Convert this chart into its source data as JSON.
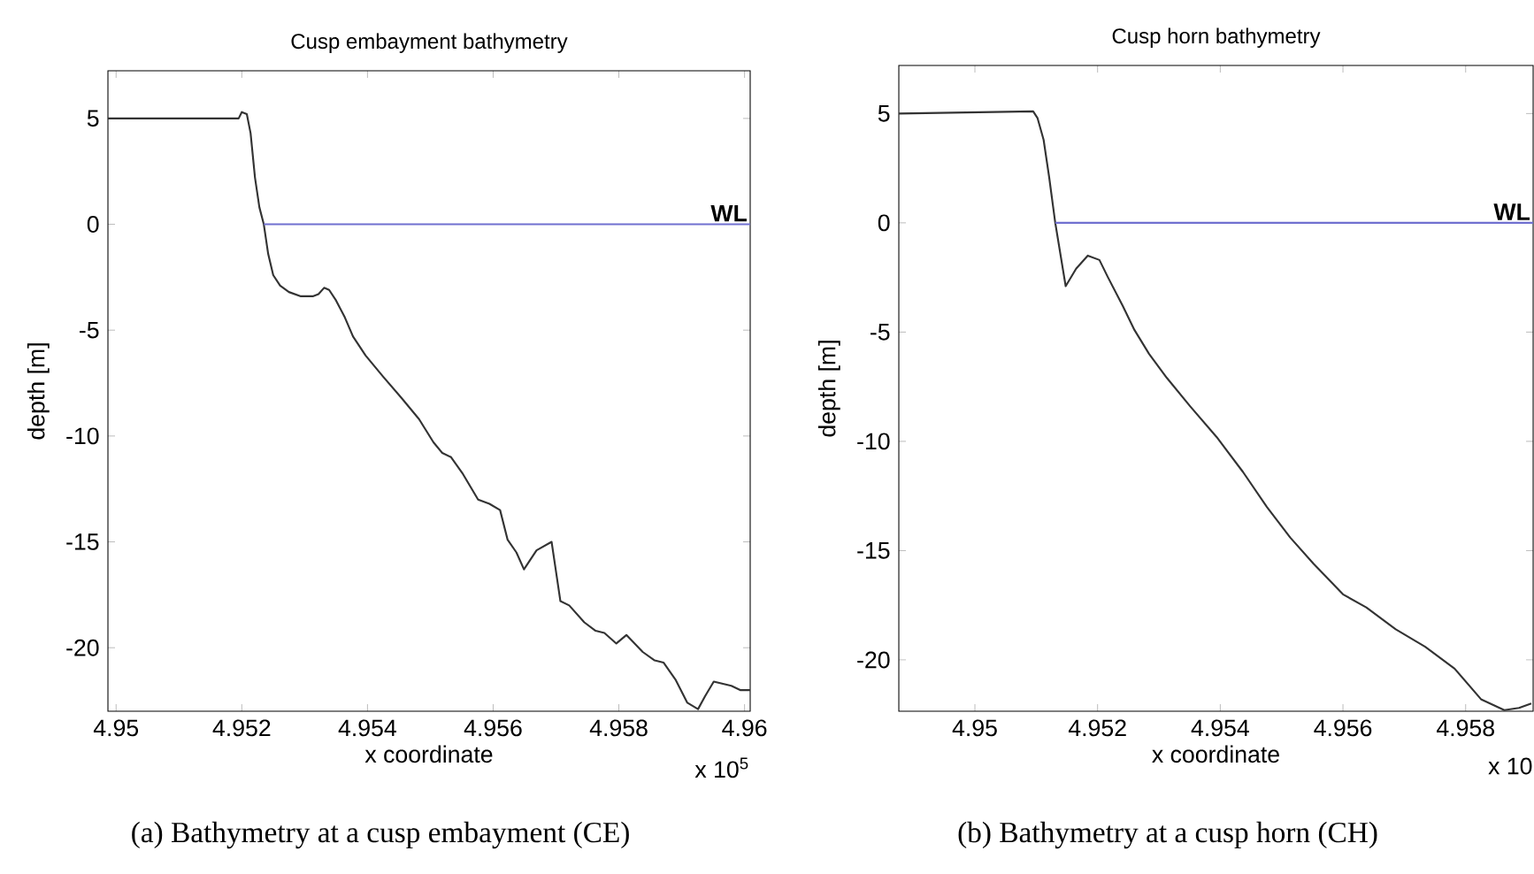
{
  "chart_data": [
    {
      "type": "line",
      "title": "Cusp embayment bathymetry",
      "xlabel": "x coordinate",
      "ylabel": "depth [m]",
      "xlim": [
        4.94987,
        4.96009
      ],
      "ylim": [
        -23,
        7.25
      ],
      "xticks": [
        4.95,
        4.952,
        4.954,
        4.956,
        4.958,
        4.96
      ],
      "yticks": [
        -20,
        -15,
        -10,
        -5,
        0,
        5
      ],
      "grid": false,
      "series": [
        {
          "color": "#333333",
          "x": [
            4.94987,
            4.95195,
            4.952,
            4.95208,
            4.95214,
            4.95221,
            4.95228,
            4.95235,
            4.95242,
            4.9525,
            4.95261,
            4.95275,
            4.95294,
            4.95313,
            4.95322,
            4.95331,
            4.95339,
            4.9535,
            4.95364,
            4.95377,
            4.95397,
            4.95425,
            4.95454,
            4.95482,
            4.95505,
            4.95519,
            4.95533,
            4.95552,
            4.95576,
            4.95594,
            4.95611,
            4.95623,
            4.95637,
            4.95649,
            4.95669,
            4.95693,
            4.95707,
            4.95721,
            4.95745,
            4.95763,
            4.95777,
            4.95796,
            4.95812,
            4.95838,
            4.95857,
            4.95871,
            4.9589,
            4.95909,
            4.95926,
            4.95937,
            4.95951,
            4.95979,
            4.95993,
            4.96009
          ],
          "values": [
            5,
            5,
            5.3,
            5.2,
            4.3,
            2.2,
            0.8,
            0,
            -1.4,
            -2.4,
            -2.9,
            -3.2,
            -3.4,
            -3.4,
            -3.3,
            -3.0,
            -3.1,
            -3.6,
            -4.4,
            -5.3,
            -6.2,
            -7.2,
            -8.2,
            -9.2,
            -10.3,
            -10.8,
            -11,
            -11.8,
            -13.0,
            -13.2,
            -13.5,
            -14.9,
            -15.5,
            -16.3,
            -15.4,
            -15.0,
            -17.8,
            -18.0,
            -18.8,
            -19.2,
            -19.3,
            -19.8,
            -19.4,
            -20.2,
            -20.6,
            -20.7,
            -21.5,
            -22.6,
            -22.9,
            -22.3,
            -21.6,
            -21.8,
            -22.0,
            -22.0
          ]
        },
        {
          "name": "WL",
          "color": "#7070d0",
          "x": [
            4.95235,
            4.96009
          ],
          "values": [
            0,
            0
          ]
        }
      ],
      "annotations": [
        "x 10$^{5}$",
        "(a) Bathymetry at a cusp embayment (CE)"
      ]
    },
    {
      "type": "line",
      "title": "Cusp horn bathymetry",
      "xlabel": "x coordinate",
      "ylabel": "depth [m]",
      "xlim": [
        4.94876,
        4.9591
      ],
      "ylim": [
        -22.35,
        7.2
      ],
      "xticks": [
        4.95,
        4.952,
        4.954,
        4.956,
        4.958
      ],
      "yticks": [
        -20,
        -15,
        -10,
        -5,
        0,
        5
      ],
      "grid": false,
      "series": [
        {
          "color": "#333333",
          "x": [
            4.94876,
            4.95095,
            4.95102,
            4.95112,
            4.95121,
            4.95131,
            4.95148,
            4.95165,
            4.95184,
            4.95203,
            4.95217,
            4.95241,
            4.9526,
            4.95284,
            4.95313,
            4.95351,
            4.95394,
            4.95437,
            4.95476,
            4.95514,
            4.95552,
            4.956,
            4.95638,
            4.95686,
            4.95734,
            4.95782,
            4.95825,
            4.95863,
            4.95887,
            4.95907
          ],
          "values": [
            5,
            5.1,
            4.8,
            3.8,
            2.1,
            0,
            -2.9,
            -2.1,
            -1.5,
            -1.7,
            -2.5,
            -3.8,
            -4.9,
            -6.0,
            -7.1,
            -8.4,
            -9.8,
            -11.4,
            -13.0,
            -14.4,
            -15.6,
            -17,
            -17.6,
            -18.6,
            -19.4,
            -20.4,
            -21.8,
            -22.3,
            -22.2,
            -22
          ]
        },
        {
          "name": "WL",
          "color": "#7070d0",
          "x": [
            4.95131,
            4.9591
          ],
          "values": [
            0,
            0
          ]
        }
      ],
      "annotations": [
        "x 10",
        "(b) Bathymetry at a cusp horn (CH)"
      ]
    }
  ]
}
